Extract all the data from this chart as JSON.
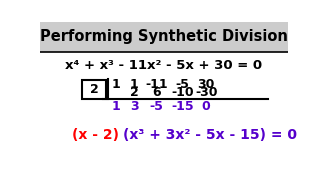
{
  "title": "Performing Synthetic Division",
  "title_color": "#000000",
  "title_bg": "#cccccc",
  "bg_color": "#ffffff",
  "equation": "x⁴ + x³ - 11x² - 5x + 30 = 0",
  "divisor": "2",
  "row1": [
    "1",
    "1",
    "-11",
    "-5",
    "30"
  ],
  "row2": [
    "2",
    "6",
    "-10",
    "-30"
  ],
  "row3": [
    "1",
    "3",
    "-5",
    "-15",
    "0"
  ],
  "result_red": "(x - 2)",
  "result_purple": "(x³ + 3x² - 5x - 15) = 0",
  "row3_color": "#5500cc",
  "result_red_color": "#ff0000",
  "result_purple_color": "#5500cc",
  "equation_color": "#000000",
  "row12_color": "#000000",
  "title_fontsize": 10.5,
  "eq_fontsize": 9.5,
  "div_fontsize": 9,
  "result_fontsize": 10
}
